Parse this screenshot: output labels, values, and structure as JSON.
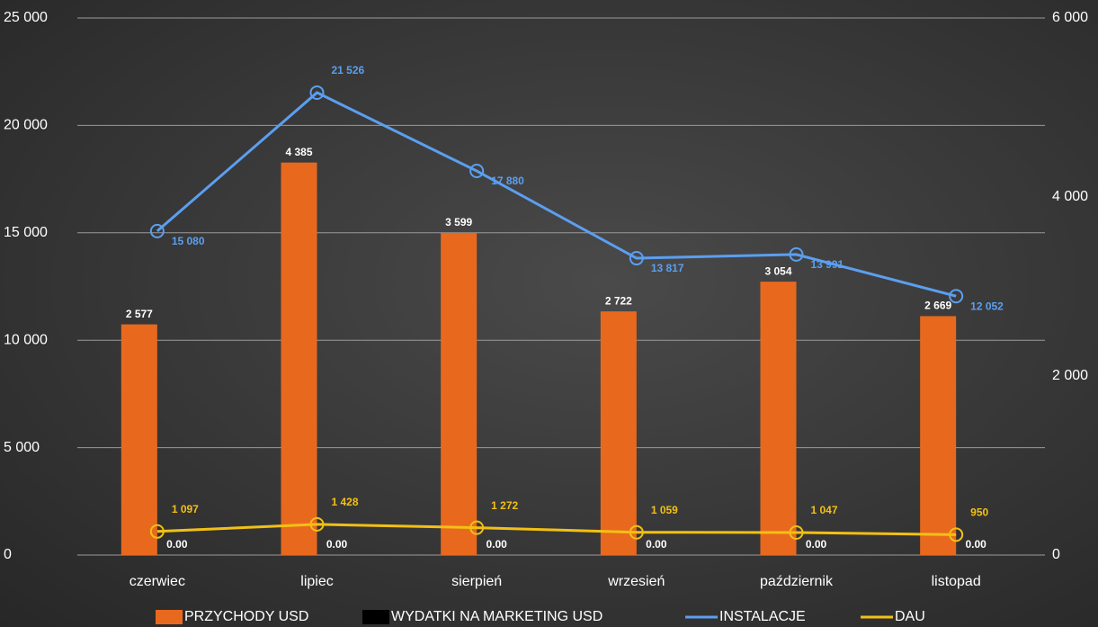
{
  "chart_data": {
    "type": "bar_line",
    "categories": [
      "czerwiec",
      "lipiec",
      "sierpień",
      "wrzesień",
      "październik",
      "listopad"
    ],
    "series": [
      {
        "name": "PRZYCHODY USD",
        "type": "bar",
        "axis": "y2",
        "color": "#e8691e",
        "values": [
          2577,
          4385,
          3599,
          2722,
          3054,
          2669
        ],
        "value_labels": [
          "2 577",
          "4 385",
          "3 599",
          "2 722",
          "3 054",
          "2 669"
        ]
      },
      {
        "name": "WYDATKI NA MARKETING USD",
        "type": "bar",
        "axis": "y2",
        "color": "#000000",
        "values": [
          0,
          0,
          0,
          0,
          0,
          0
        ],
        "value_labels": [
          "0.00",
          "0.00",
          "0.00",
          "0.00",
          "0.00",
          "0.00"
        ]
      },
      {
        "name": "INSTALACJE",
        "type": "line",
        "color": "#5b9ff0",
        "values": [
          15080,
          21526,
          17880,
          13817,
          13991,
          12052
        ],
        "value_labels": [
          "15 080",
          "21 526",
          "17 880",
          "13 817",
          "13 991",
          "12 052"
        ]
      },
      {
        "name": "DAU",
        "type": "line",
        "color": "#f2c014",
        "values": [
          1097,
          1428,
          1272,
          1059,
          1047,
          950
        ],
        "value_labels": [
          "1 097",
          "1 428",
          "1 272",
          "1 059",
          "1 047",
          "950"
        ]
      }
    ],
    "ylim": [
      0,
      25000
    ],
    "yticks": [
      0,
      {
        "value": 5000,
        "label": "5 000"
      },
      {
        "value": 10000,
        "label": "10 000"
      },
      {
        "value": 15000,
        "label": "15 000"
      },
      {
        "value": 20000,
        "label": "20 000"
      },
      {
        "value": 25000,
        "label": "25 000"
      }
    ],
    "y2lim": [
      0,
      6000
    ],
    "y2ticks": [
      0,
      {
        "value": 2000,
        "label": "2 000"
      },
      {
        "value": 4000,
        "label": "4 000"
      },
      {
        "value": 6000,
        "label": "6 000"
      }
    ],
    "grid": true
  }
}
